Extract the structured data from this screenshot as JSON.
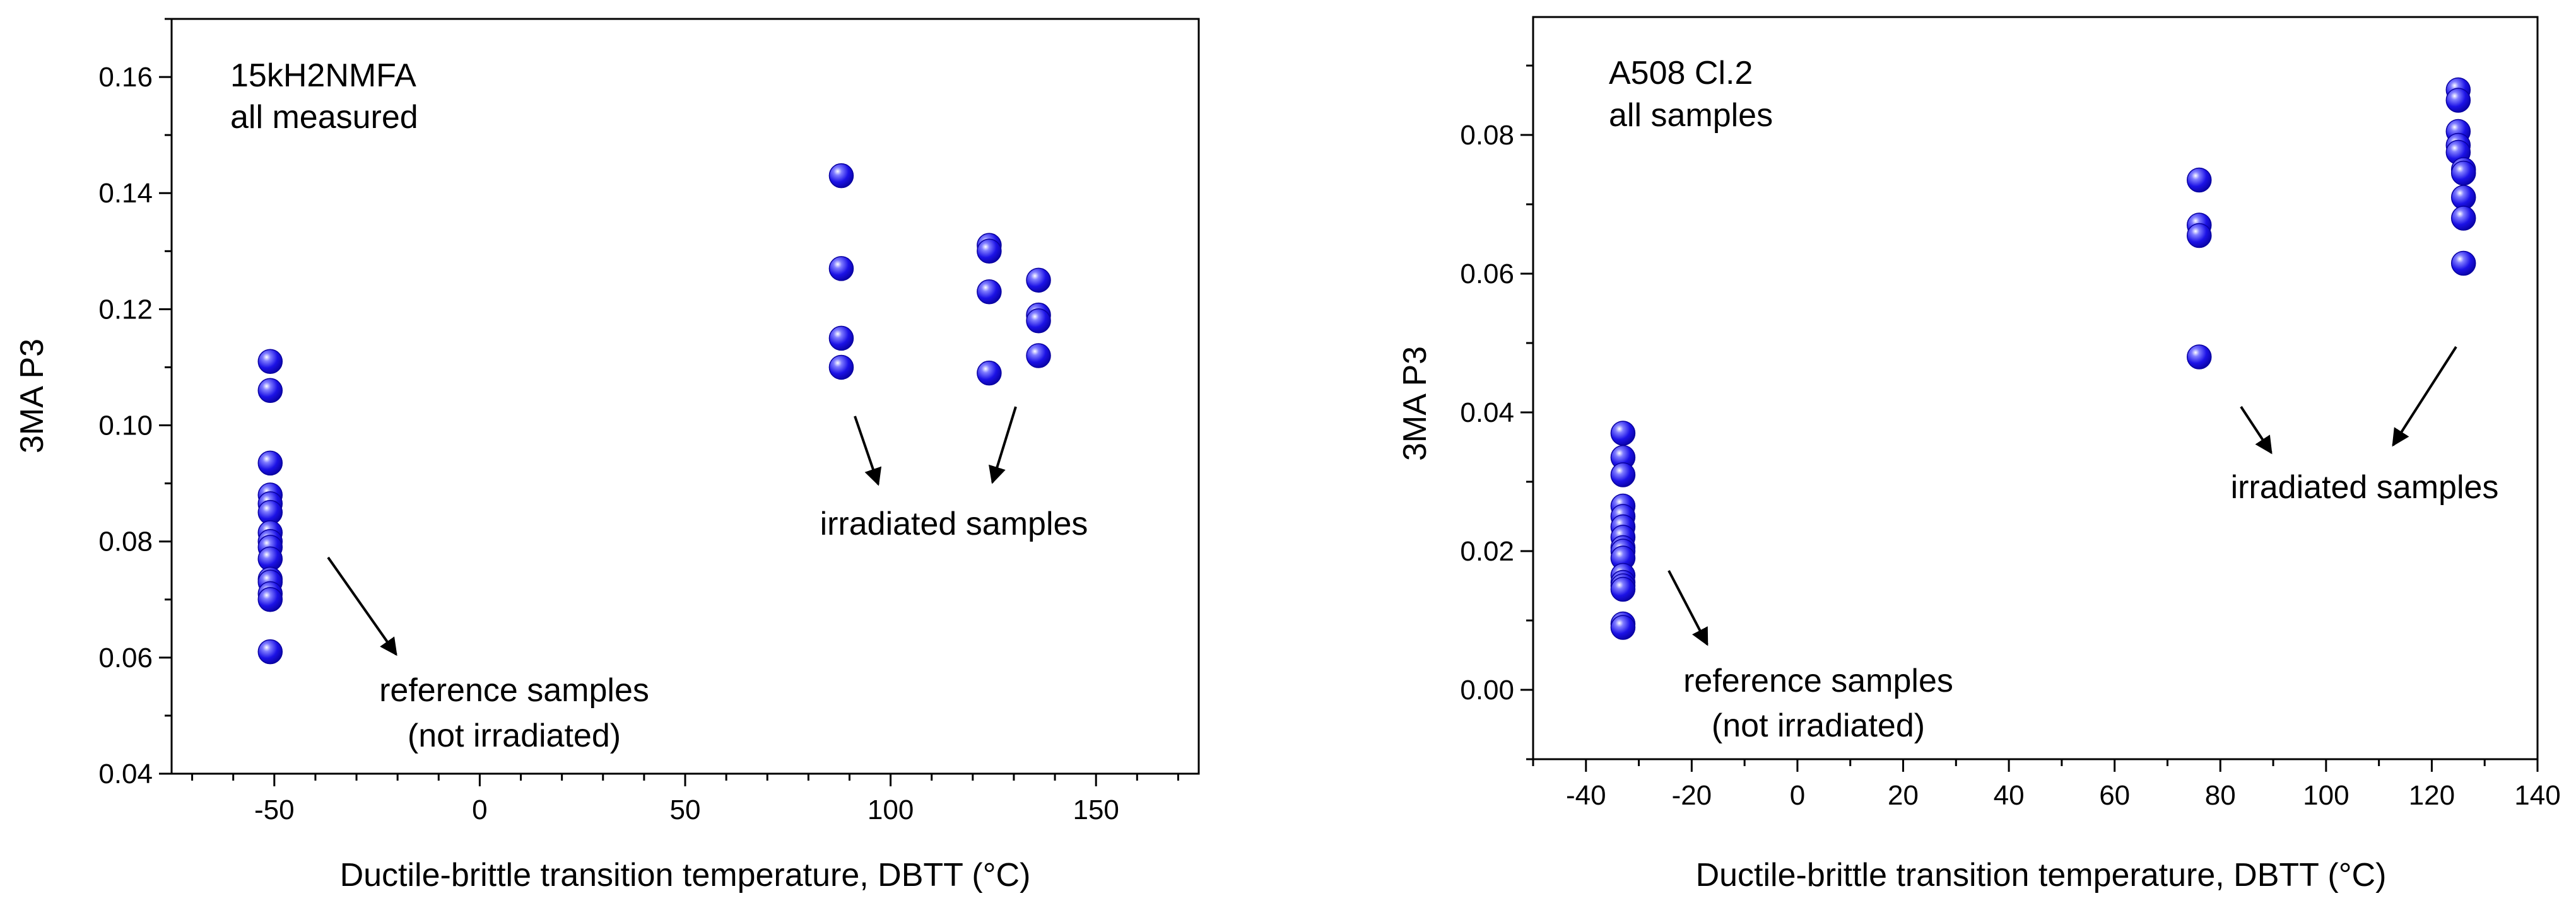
{
  "colors": {
    "marker": "#1c12e6",
    "marker_dark": "#0800a0",
    "axis": "#000000",
    "background": "#ffffff"
  },
  "chart_data": [
    {
      "type": "scatter",
      "title": "",
      "xlabel": "Ductile-brittle transition temperature, DBTT (°C)",
      "ylabel": "3MA  P3",
      "xlim": [
        -75,
        175
      ],
      "ylim": [
        0.04,
        0.17
      ],
      "xticks": [
        -50,
        0,
        50,
        100,
        150
      ],
      "yticks": [
        0.04,
        0.06,
        0.08,
        0.1,
        0.12,
        0.14,
        0.16
      ],
      "xtick_labels": [
        "-50",
        "0",
        "50",
        "100",
        "150"
      ],
      "ytick_labels": [
        "0.04",
        "0.06",
        "0.08",
        "0.10",
        "0.12",
        "0.14",
        "0.16"
      ],
      "grid": false,
      "annotations": [
        {
          "id": "material",
          "lines": [
            "15kH2NMFA",
            "all measured"
          ]
        },
        {
          "id": "irradiated",
          "lines": [
            "irradiated samples"
          ]
        },
        {
          "id": "reference",
          "lines": [
            "reference samples",
            "(not irradiated)"
          ]
        }
      ],
      "series": [
        {
          "name": "reference samples",
          "x": [
            -51,
            -51,
            -51,
            -51,
            -51,
            -51,
            -51,
            -51,
            -51,
            -51,
            -51,
            -51,
            -51,
            -51,
            -51
          ],
          "y": [
            0.111,
            0.106,
            0.0935,
            0.088,
            0.0865,
            0.085,
            0.0815,
            0.08,
            0.079,
            0.077,
            0.0735,
            0.073,
            0.071,
            0.07,
            0.061
          ]
        },
        {
          "name": "irradiated samples",
          "x": [
            88,
            88,
            88,
            88,
            124,
            124,
            124,
            124,
            136,
            136,
            136,
            136
          ],
          "y": [
            0.143,
            0.127,
            0.115,
            0.11,
            0.131,
            0.13,
            0.123,
            0.109,
            0.125,
            0.119,
            0.118,
            0.112
          ]
        }
      ]
    },
    {
      "type": "scatter",
      "title": "",
      "xlabel": "Ductile-brittle transition temperature, DBTT (°C)",
      "ylabel": "3MA  P3",
      "xlim": [
        -50,
        140
      ],
      "ylim": [
        -0.01,
        0.097
      ],
      "xticks": [
        -40,
        -20,
        0,
        20,
        40,
        60,
        80,
        100,
        120,
        140
      ],
      "yticks": [
        0.0,
        0.02,
        0.04,
        0.06,
        0.08
      ],
      "xtick_labels": [
        "-40",
        "-20",
        "0",
        "20",
        "40",
        "60",
        "80",
        "100",
        "120",
        "140"
      ],
      "ytick_labels": [
        "0.00",
        "0.02",
        "0.04",
        "0.06",
        "0.08"
      ],
      "grid": false,
      "annotations": [
        {
          "id": "material",
          "lines": [
            "A508 Cl.2",
            "all samples"
          ]
        },
        {
          "id": "irradiated",
          "lines": [
            "irradiated samples"
          ]
        },
        {
          "id": "reference",
          "lines": [
            "reference samples",
            "(not irradiated)"
          ]
        }
      ],
      "series": [
        {
          "name": "reference samples",
          "x": [
            -33,
            -33,
            -33,
            -33,
            -33,
            -33,
            -33,
            -33,
            -33,
            -33,
            -33,
            -33,
            -33,
            -33,
            -33,
            -33
          ],
          "y": [
            0.037,
            0.0335,
            0.031,
            0.0265,
            0.025,
            0.0235,
            0.022,
            0.0205,
            0.02,
            0.019,
            0.0165,
            0.0155,
            0.015,
            0.0145,
            0.0095,
            0.009
          ]
        },
        {
          "name": "irradiated samples",
          "x": [
            76,
            76,
            76,
            76,
            125,
            125,
            125,
            125,
            125,
            126,
            126,
            126,
            126,
            126
          ],
          "y": [
            0.0735,
            0.067,
            0.0655,
            0.048,
            0.0865,
            0.085,
            0.0805,
            0.0785,
            0.0775,
            0.075,
            0.0745,
            0.071,
            0.068,
            0.0615
          ]
        }
      ]
    }
  ]
}
